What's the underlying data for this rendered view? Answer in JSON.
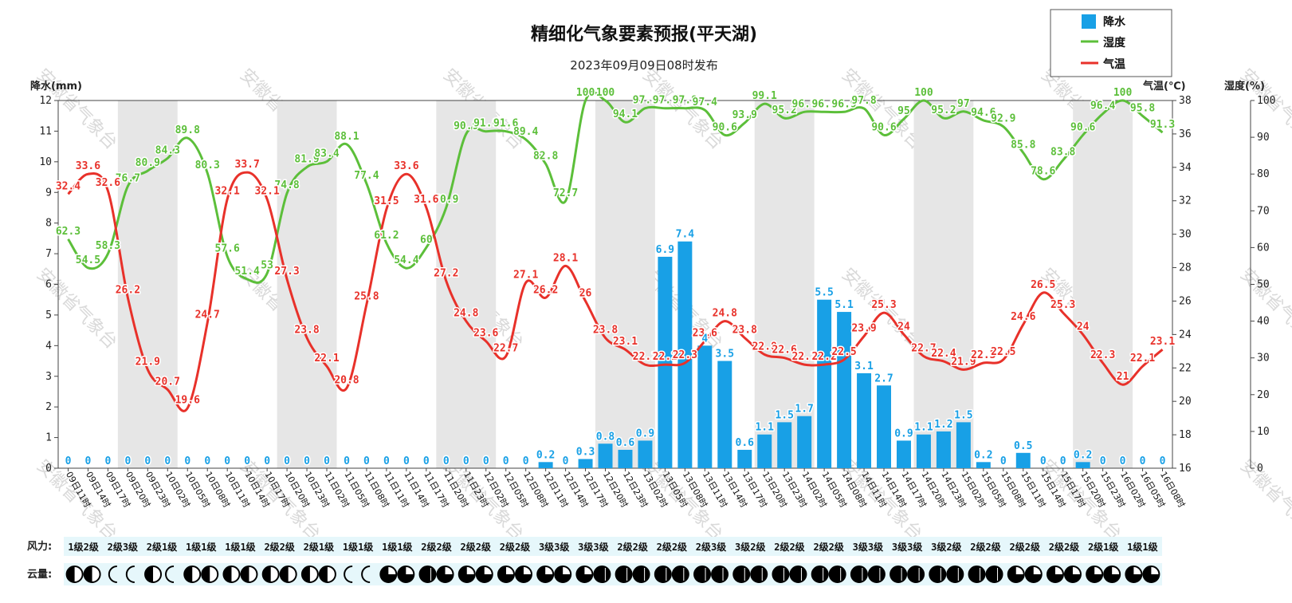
{
  "chart_data": {
    "type": "bar+line",
    "title": "精细化气象要素预报(平天湖)",
    "subtitle": "2023年09月09日08时发布",
    "y_left_label": "降水(mm)",
    "y_right_temp_label": "气温(℃)",
    "y_right_humidity_label": "湿度(%)",
    "y_left_range": [
      0,
      12
    ],
    "y_temp_range": [
      16,
      38
    ],
    "y_humidity_range": [
      0,
      100
    ],
    "y_left_ticks": [
      "0",
      "1",
      "2",
      "3",
      "4",
      "5",
      "6",
      "7",
      "8",
      "9",
      "10",
      "11",
      "12"
    ],
    "y_temp_ticks": [
      "16",
      "18",
      "20",
      "22",
      "24",
      "26",
      "28",
      "30",
      "32",
      "34",
      "36",
      "38"
    ],
    "y_humidity_ticks": [
      "0",
      "10",
      "20",
      "30",
      "40",
      "50",
      "60",
      "70",
      "80",
      "90",
      "100"
    ],
    "legend": [
      {
        "name": "降水",
        "color": "#18a0e6"
      },
      {
        "name": "湿度",
        "color": "#5cbf3a"
      },
      {
        "name": "气温",
        "color": "#e8312a"
      }
    ],
    "categories": [
      "09日11时",
      "09日14时",
      "09日17时",
      "09日20时",
      "09日23时",
      "10日02时",
      "10日05时",
      "10日08时",
      "10日11时",
      "10日14时",
      "10日17时",
      "10日20时",
      "10日23时",
      "11日02时",
      "11日05时",
      "11日08时",
      "11日11时",
      "11日14时",
      "11日17时",
      "11日20时",
      "11日23时",
      "12日02时",
      "12日05时",
      "12日08时",
      "12日11时",
      "12日14时",
      "12日17时",
      "12日20时",
      "12日23时",
      "13日02时",
      "13日05时",
      "13日08时",
      "13日11时",
      "13日14时",
      "13日17时",
      "13日20时",
      "13日23时",
      "14日02时",
      "14日05时",
      "14日08时",
      "14日11时",
      "14日14时",
      "14日17时",
      "14日20时",
      "14日23时",
      "15日02时",
      "15日05时",
      "15日08时",
      "15日11时",
      "15日14时",
      "15日17时",
      "15日20时",
      "15日23时",
      "16日02时",
      "16日05时",
      "16日08时"
    ],
    "series": [
      {
        "name": "降水",
        "values": [
          0,
          0,
          0,
          0,
          0,
          0,
          0,
          0,
          0,
          0,
          0,
          0,
          0,
          0,
          0,
          0,
          0,
          0,
          0,
          0,
          0,
          0,
          0,
          0,
          0.2,
          0,
          0.3,
          0.8,
          0.6,
          0.9,
          6.9,
          7.4,
          4.0,
          3.5,
          0.6,
          1.1,
          1.5,
          1.7,
          5.5,
          5.1,
          3.1,
          2.7,
          0.9,
          1.1,
          1.2,
          1.5,
          0.2,
          0,
          0.5,
          0,
          0,
          0.2,
          0,
          0,
          0,
          0
        ]
      },
      {
        "name": "湿度",
        "values": [
          62.3,
          54.5,
          58.3,
          76.7,
          80.9,
          84.3,
          89.8,
          80.3,
          57.6,
          51.4,
          53,
          74.8,
          81.9,
          83.4,
          88.1,
          77.4,
          61.2,
          54.4,
          60,
          70.9,
          90.9,
          91.6,
          91.6,
          89.4,
          82.8,
          72.7,
          100,
          100,
          94.1,
          97.9,
          97.9,
          97.9,
          97.4,
          90.6,
          93.9,
          99.1,
          95.2,
          96.9,
          96.9,
          96.9,
          97.8,
          90.6,
          95,
          100,
          95.2,
          97,
          94.6,
          92.9,
          85.8,
          78.6,
          83.8,
          90.6,
          96.4,
          100,
          95.8,
          91.3
        ]
      },
      {
        "name": "气温",
        "values": [
          32.4,
          33.6,
          32.6,
          26.2,
          21.9,
          20.7,
          19.6,
          24.7,
          32.1,
          33.7,
          32.1,
          27.3,
          23.8,
          22.1,
          20.8,
          25.8,
          31.5,
          33.6,
          31.6,
          27.2,
          24.8,
          23.6,
          22.7,
          27.1,
          26.2,
          28.1,
          26,
          23.8,
          23.1,
          22.2,
          22.2,
          22.3,
          23.6,
          24.8,
          23.8,
          22.8,
          22.6,
          22.2,
          22.2,
          22.5,
          23.9,
          25.3,
          24,
          22.7,
          22.4,
          21.9,
          22.3,
          22.5,
          24.6,
          26.5,
          25.3,
          24,
          22.3,
          21,
          22.1,
          23.1
        ]
      }
    ]
  },
  "bottom": {
    "wind_label": "风力:",
    "cloud_label": "云量:",
    "wind": [
      "1级2级",
      "2级3级",
      "2级1级",
      "1级1级",
      "1级1级",
      "2级2级",
      "2级1级",
      "1级1级",
      "1级1级",
      "2级2级",
      "2级2级",
      "2级2级",
      "3级3级",
      "3级3级",
      "2级2级",
      "2级2级",
      "2级3级",
      "3级2级",
      "2级2级",
      "2级2级",
      "3级3级",
      "3级3级",
      "3级2级",
      "2级2级",
      "2级2级",
      "2级2级",
      "2级1级",
      "1级1级"
    ],
    "cloud": [
      [
        1,
        1
      ],
      [
        0,
        0
      ],
      [
        1,
        0
      ],
      [
        1,
        1
      ],
      [
        1,
        1
      ],
      [
        1,
        1
      ],
      [
        1,
        1
      ],
      [
        0,
        0
      ],
      [
        2,
        2
      ],
      [
        3,
        2
      ],
      [
        2,
        2
      ],
      [
        2,
        2
      ],
      [
        2,
        2
      ],
      [
        2,
        3
      ],
      [
        3,
        3
      ],
      [
        3,
        3
      ],
      [
        3,
        3
      ],
      [
        3,
        3
      ],
      [
        3,
        3
      ],
      [
        3,
        3
      ],
      [
        3,
        3
      ],
      [
        3,
        3
      ],
      [
        3,
        3
      ],
      [
        3,
        3
      ],
      [
        2,
        2
      ],
      [
        2,
        2
      ],
      [
        2,
        2
      ],
      [
        2,
        2
      ]
    ]
  },
  "watermark_text": "安徽省气象台",
  "colors": {
    "precip": "#18a0e6",
    "humidity": "#5cbf3a",
    "temp": "#e8312a",
    "band": "#e6e6e6",
    "rowbg": "#e6f7fb"
  }
}
